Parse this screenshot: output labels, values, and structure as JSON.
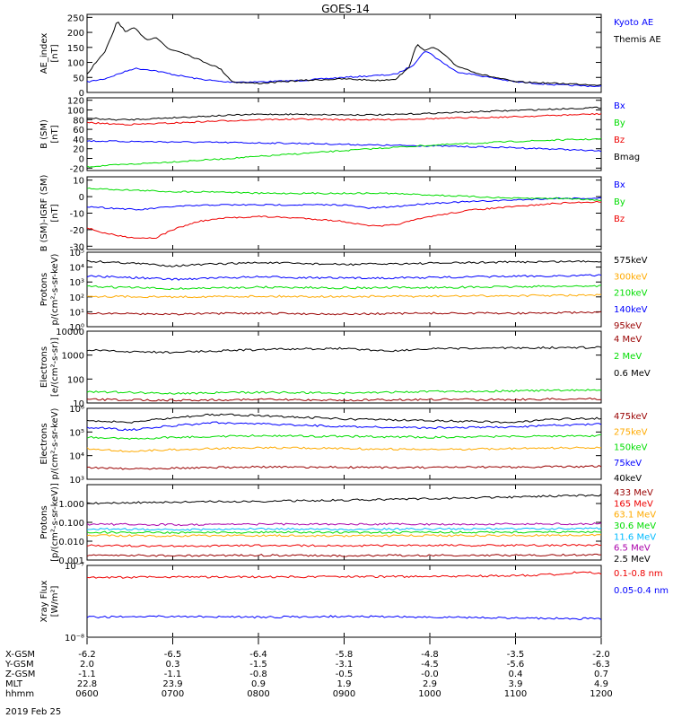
{
  "title": "GOES-14",
  "date_label": "2019 Feb 25",
  "colors": {
    "black": "#000000",
    "blue": "#0000ff",
    "green": "#00dd00",
    "red": "#ee0000",
    "darkred": "#990000",
    "orange": "#ffaa00",
    "cyan": "#00bbff",
    "purple": "#aa00aa"
  },
  "ephemeris": {
    "labels": [
      "X-GSM",
      "Y-GSM",
      "Z-GSM",
      "MLT",
      "hhmm"
    ],
    "columns": [
      [
        "-6.2",
        "2.0",
        "-1.1",
        "22.8",
        "0600"
      ],
      [
        "-6.5",
        "0.3",
        "-1.1",
        "23.9",
        "0700"
      ],
      [
        "-6.4",
        "-1.5",
        "-0.8",
        "0.9",
        "0800"
      ],
      [
        "-5.8",
        "-3.1",
        "-0.5",
        "1.9",
        "0900"
      ],
      [
        "-4.8",
        "-4.5",
        "-0.0",
        "2.9",
        "1000"
      ],
      [
        "-3.5",
        "-5.6",
        "0.4",
        "3.9",
        "1100"
      ],
      [
        "-2.0",
        "-6.3",
        "0.7",
        "4.9",
        "1200"
      ]
    ]
  },
  "chart_data": [
    {
      "type": "line",
      "ylabel": "AE_index\n[nT]",
      "ylim": [
        0,
        260
      ],
      "yticks": [
        "0",
        "50",
        "100",
        "150",
        "200",
        "250"
      ],
      "ytick_values": [
        0,
        50,
        100,
        150,
        200,
        250
      ],
      "x": [
        "0600",
        "0700",
        "0800",
        "0900",
        "1000",
        "1100",
        "1200"
      ],
      "series": [
        {
          "name": "Kyoto AE",
          "color": "blue",
          "x": [
            6.0,
            6.2,
            6.4,
            6.55,
            6.75,
            7.0,
            7.3,
            7.6,
            8.0,
            8.5,
            9.0,
            9.3,
            9.6,
            9.8,
            9.95,
            10.1,
            10.3,
            10.6,
            11.0,
            11.5,
            12.0
          ],
          "values": [
            35,
            45,
            65,
            80,
            75,
            60,
            45,
            35,
            35,
            40,
            50,
            55,
            60,
            90,
            140,
            110,
            70,
            55,
            35,
            25,
            20
          ]
        },
        {
          "name": "Themis AE",
          "color": "black",
          "x": [
            6.0,
            6.1,
            6.2,
            6.3,
            6.35,
            6.45,
            6.55,
            6.7,
            6.8,
            6.95,
            7.1,
            7.3,
            7.55,
            7.7,
            8.0,
            8.5,
            9.0,
            9.4,
            9.6,
            9.75,
            9.85,
            9.95,
            10.05,
            10.15,
            10.3,
            10.6,
            11.0,
            11.5,
            12.0
          ],
          "values": [
            60,
            100,
            130,
            195,
            240,
            200,
            215,
            175,
            185,
            145,
            135,
            110,
            80,
            35,
            30,
            40,
            45,
            40,
            45,
            80,
            160,
            140,
            150,
            130,
            90,
            60,
            35,
            30,
            25
          ]
        }
      ]
    },
    {
      "type": "line",
      "ylabel": "B (SM)\n[nT]",
      "ylim": [
        -25,
        125
      ],
      "yticks": [
        "-20",
        "0",
        "20",
        "40",
        "60",
        "80",
        "100",
        "120"
      ],
      "ytick_values": [
        -20,
        0,
        20,
        40,
        60,
        80,
        100,
        120
      ],
      "series": [
        {
          "name": "Bx",
          "color": "blue",
          "x": [
            6,
            6.5,
            7,
            7.5,
            8,
            8.5,
            9,
            9.5,
            10,
            10.5,
            11,
            11.5,
            12
          ],
          "values": [
            36,
            35,
            34,
            33,
            32,
            31,
            29,
            27,
            26,
            24,
            22,
            19,
            15
          ]
        },
        {
          "name": "By",
          "color": "green",
          "x": [
            6,
            6.5,
            7,
            7.5,
            8,
            8.5,
            9,
            9.5,
            10,
            10.5,
            11,
            11.5,
            12
          ],
          "values": [
            -17,
            -12,
            -7,
            -2,
            4,
            10,
            16,
            22,
            27,
            31,
            35,
            38,
            40
          ]
        },
        {
          "name": "Bz",
          "color": "red",
          "x": [
            6,
            6.3,
            6.5,
            7,
            7.5,
            8,
            8.5,
            9,
            9.5,
            10,
            10.5,
            11,
            11.5,
            12
          ],
          "values": [
            74,
            71,
            70,
            73,
            77,
            80,
            81,
            80,
            80,
            82,
            84,
            86,
            89,
            92
          ]
        },
        {
          "name": "Bmag",
          "color": "black",
          "x": [
            6,
            6.3,
            6.5,
            7,
            7.5,
            8,
            8.5,
            9,
            9.5,
            10,
            10.5,
            11,
            11.5,
            12
          ],
          "values": [
            83,
            80,
            80,
            84,
            88,
            91,
            91,
            90,
            90,
            93,
            96,
            99,
            102,
            105
          ]
        }
      ]
    },
    {
      "type": "line",
      "ylabel": "B (SM)-IGRF (SM)\n[nT]",
      "ylim": [
        -32,
        12
      ],
      "yticks": [
        "-30",
        "-20",
        "-10",
        "0",
        "10"
      ],
      "ytick_values": [
        -30,
        -20,
        -10,
        0,
        10
      ],
      "series": [
        {
          "name": "Bx",
          "color": "blue",
          "x": [
            6,
            6.3,
            6.6,
            7,
            7.5,
            8,
            8.5,
            9,
            9.3,
            9.6,
            10,
            10.5,
            11,
            11.5,
            12
          ],
          "values": [
            -6,
            -7,
            -8,
            -6,
            -5,
            -5,
            -5,
            -5,
            -7,
            -6,
            -4,
            -3,
            -2,
            -1,
            -1
          ]
        },
        {
          "name": "By",
          "color": "green",
          "x": [
            6,
            6.5,
            7,
            7.5,
            8,
            8.5,
            9,
            9.5,
            10,
            10.5,
            11,
            11.5,
            12
          ],
          "values": [
            5,
            4,
            3,
            3,
            2,
            2,
            2,
            2,
            1,
            0,
            -1,
            -1,
            -2
          ]
        },
        {
          "name": "Bz",
          "color": "red",
          "x": [
            6,
            6.2,
            6.4,
            6.6,
            6.8,
            7,
            7.3,
            7.6,
            8,
            8.5,
            9,
            9.2,
            9.4,
            9.6,
            10,
            10.5,
            11,
            11.5,
            12
          ],
          "values": [
            -19,
            -22,
            -24,
            -25,
            -25,
            -20,
            -15,
            -13,
            -12,
            -13,
            -15,
            -17,
            -18,
            -17,
            -12,
            -8,
            -6,
            -4,
            -3
          ]
        }
      ]
    },
    {
      "type": "line",
      "log": true,
      "ylabel": "Protons\np/(cm²-s-sr-keV)",
      "ylim": [
        1,
        100000
      ],
      "yticks": [
        "10⁰",
        "10¹",
        "10²",
        "10³",
        "10⁴",
        "10⁵"
      ],
      "ytick_values": [
        1,
        10,
        100,
        1000,
        10000,
        100000
      ],
      "series": [
        {
          "name": "575keV",
          "color": "black",
          "x": [
            6,
            7,
            8,
            9,
            10,
            11,
            12
          ],
          "values": [
            25000,
            12000,
            20000,
            15000,
            18000,
            22000,
            25000
          ]
        },
        {
          "name": "300keV",
          "color": "orange",
          "x": [
            6,
            7,
            8,
            9,
            10,
            11,
            12
          ],
          "values": [
            110,
            100,
            110,
            105,
            110,
            120,
            130
          ]
        },
        {
          "name": "210keV",
          "color": "green",
          "x": [
            6,
            7,
            8,
            9,
            10,
            11,
            12
          ],
          "values": [
            500,
            350,
            450,
            400,
            420,
            480,
            550
          ]
        },
        {
          "name": "140keV",
          "color": "blue",
          "x": [
            6,
            7,
            8,
            9,
            10,
            11,
            12
          ],
          "values": [
            2500,
            1500,
            2200,
            1800,
            2000,
            2400,
            2800
          ]
        },
        {
          "name": "95keV",
          "color": "darkred",
          "x": [
            6,
            7,
            8,
            9,
            10,
            11,
            12
          ],
          "values": [
            8,
            7,
            8,
            7,
            8,
            8,
            9
          ]
        }
      ]
    },
    {
      "type": "line",
      "log": true,
      "ylabel": "Electrons\n[e/(cm²-s-sr)]",
      "ylim": [
        10,
        10000
      ],
      "yticks": [
        "10",
        "100",
        "1000",
        "10000"
      ],
      "ytick_values": [
        10,
        100,
        1000,
        10000
      ],
      "series": [
        {
          "name": "4 MeV",
          "color": "darkred",
          "x": [
            6,
            7,
            8,
            9,
            10,
            11,
            12
          ],
          "values": [
            14,
            13,
            14,
            13,
            14,
            14,
            15
          ]
        },
        {
          "name": "2 MeV",
          "color": "green",
          "x": [
            6,
            7,
            8,
            9,
            10,
            11,
            12
          ],
          "values": [
            30,
            25,
            28,
            26,
            30,
            32,
            35
          ]
        },
        {
          "name": "0.6 MeV",
          "color": "black",
          "x": [
            6,
            6.5,
            7,
            8,
            9,
            9.5,
            10,
            11,
            12
          ],
          "values": [
            1600,
            1400,
            1300,
            1700,
            1900,
            1500,
            1800,
            2000,
            2100
          ]
        }
      ]
    },
    {
      "type": "line",
      "log": true,
      "ylabel": "Electrons\np/(cm²-s-sr-keV)",
      "ylim": [
        1000,
        1000000
      ],
      "yticks": [
        "10³",
        "10⁴",
        "10⁵",
        "10⁶"
      ],
      "ytick_values": [
        1000,
        10000,
        100000,
        1000000
      ],
      "series": [
        {
          "name": "475keV",
          "color": "darkred",
          "x": [
            6,
            6.5,
            7,
            8,
            9,
            10,
            11,
            12
          ],
          "values": [
            3200,
            2800,
            3000,
            3300,
            3200,
            3100,
            3300,
            3500
          ]
        },
        {
          "name": "275keV",
          "color": "orange",
          "x": [
            6,
            6.5,
            7,
            8,
            9,
            10,
            11,
            12
          ],
          "values": [
            20000,
            15000,
            18000,
            22000,
            20000,
            18000,
            20000,
            22000
          ]
        },
        {
          "name": "150keV",
          "color": "green",
          "x": [
            6,
            6.5,
            7,
            8,
            9,
            10,
            11,
            12
          ],
          "values": [
            60000,
            50000,
            60000,
            70000,
            65000,
            60000,
            65000,
            70000
          ]
        },
        {
          "name": "75keV",
          "color": "blue",
          "x": [
            6,
            6.5,
            7,
            7.5,
            8,
            9,
            10,
            11,
            11.5,
            12
          ],
          "values": [
            160000,
            120000,
            180000,
            250000,
            220000,
            170000,
            150000,
            160000,
            200000,
            210000
          ]
        },
        {
          "name": "40keV",
          "color": "black",
          "x": [
            6,
            6.5,
            7,
            7.5,
            8,
            9,
            10,
            11,
            11.5,
            12
          ],
          "values": [
            300000,
            250000,
            400000,
            550000,
            500000,
            350000,
            300000,
            260000,
            350000,
            380000
          ]
        }
      ]
    },
    {
      "type": "line",
      "log": true,
      "ylabel": "Protons\n[p/(cm²-s-sr-keV)]",
      "ylim": [
        0.001,
        10
      ],
      "yticks": [
        "0.001",
        "0.010",
        "0.100",
        "1.000"
      ],
      "ytick_values": [
        0.001,
        0.01,
        0.1,
        1
      ],
      "series": [
        {
          "name": "433 MeV",
          "color": "darkred",
          "x": [
            6,
            7,
            8,
            9,
            10,
            11,
            12
          ],
          "values": [
            0.0018,
            0.0017,
            0.0018,
            0.0017,
            0.0018,
            0.0018,
            0.0019
          ]
        },
        {
          "name": "165 MeV",
          "color": "red",
          "x": [
            6,
            7,
            8,
            9,
            10,
            11,
            12
          ],
          "values": [
            0.006,
            0.0055,
            0.006,
            0.0058,
            0.006,
            0.006,
            0.0062
          ]
        },
        {
          "name": "63.1 MeV",
          "color": "orange",
          "x": [
            6,
            7,
            8,
            9,
            10,
            11,
            12
          ],
          "values": [
            0.02,
            0.019,
            0.02,
            0.019,
            0.02,
            0.02,
            0.021
          ]
        },
        {
          "name": "30.6 MeV",
          "color": "green",
          "x": [
            6,
            7,
            8,
            9,
            10,
            11,
            12
          ],
          "values": [
            0.03,
            0.028,
            0.03,
            0.029,
            0.03,
            0.03,
            0.031
          ]
        },
        {
          "name": "11.6 MeV",
          "color": "cyan",
          "x": [
            6,
            7,
            8,
            9,
            10,
            11,
            12
          ],
          "values": [
            0.045,
            0.04,
            0.045,
            0.042,
            0.045,
            0.045,
            0.047
          ]
        },
        {
          "name": "6.5 MeV",
          "color": "purple",
          "x": [
            6,
            7,
            8,
            9,
            10,
            11,
            12
          ],
          "values": [
            0.08,
            0.075,
            0.08,
            0.078,
            0.08,
            0.08,
            0.085
          ]
        },
        {
          "name": "2.5 MeV",
          "color": "black",
          "x": [
            6,
            7,
            8,
            9,
            10,
            11,
            12
          ],
          "values": [
            1.0,
            1.2,
            1.3,
            1.5,
            1.8,
            2.2,
            2.8
          ]
        }
      ]
    },
    {
      "type": "line",
      "log": true,
      "ylabel": "Xray Flux\n[W/m²]",
      "ylim": [
        1e-08,
        1e-07
      ],
      "yticks": [
        "10⁻⁸",
        "10⁻⁷"
      ],
      "ytick_values": [
        1e-08,
        1e-07
      ],
      "series": [
        {
          "name": "0.1-0.8 nm",
          "color": "red",
          "x": [
            6,
            7,
            8,
            9,
            10,
            11,
            11.5,
            11.8,
            12
          ],
          "values": [
            6.8e-08,
            6.9e-08,
            6.9e-08,
            7e-08,
            7e-08,
            7.2e-08,
            7.5e-08,
            8.3e-08,
            7.6e-08
          ]
        },
        {
          "name": "0.05-0.4 nm",
          "color": "blue",
          "x": [
            6,
            7,
            8,
            9,
            10,
            11,
            12
          ],
          "values": [
            1.9e-08,
            1.95e-08,
            1.9e-08,
            1.95e-08,
            1.9e-08,
            1.85e-08,
            1.8e-08
          ]
        }
      ]
    }
  ]
}
